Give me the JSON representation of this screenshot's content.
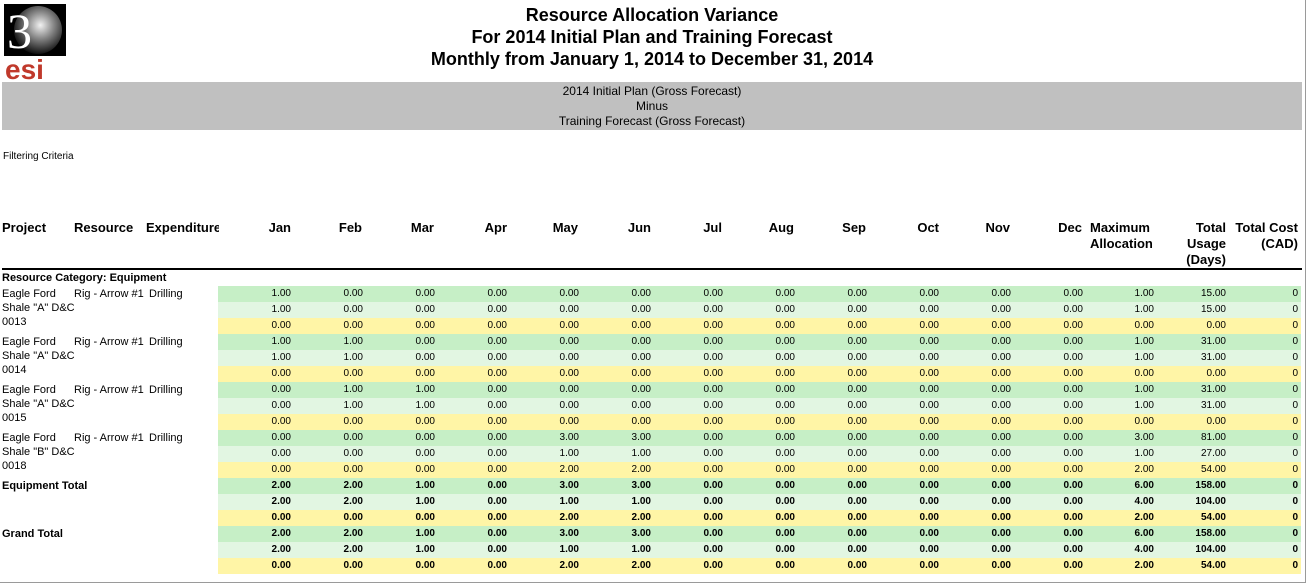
{
  "logo": {
    "digit": "3",
    "text": "esi",
    "accent_color": "#c0392b"
  },
  "header": {
    "title_lines": [
      "Resource Allocation Variance",
      "For 2014 Initial Plan and Training Forecast",
      "Monthly from January 1, 2014 to December 31, 2014"
    ],
    "band_lines": [
      "2014 Initial Plan (Gross Forecast)",
      "Minus",
      "Training Forecast (Gross Forecast)"
    ]
  },
  "filter_label": "Filtering Criteria",
  "columns": {
    "project": "Project",
    "resource": "Resource",
    "expenditure": "Expenditure",
    "months": [
      "Jan",
      "Feb",
      "Mar",
      "Apr",
      "May",
      "Jun",
      "Jul",
      "Aug",
      "Sep",
      "Oct",
      "Nov",
      "Dec"
    ],
    "max_alloc": [
      "Maximum",
      "Allocation"
    ],
    "total_usage": [
      "Total",
      "Usage",
      "(Days)"
    ],
    "total_cost": [
      "Total Cost",
      "(CAD)"
    ]
  },
  "category_label": "Resource Category: Equipment",
  "groups": [
    {
      "project": [
        "Eagle Ford",
        "Shale \"A\" D&C",
        "0013"
      ],
      "resource": "Rig - Arrow #1",
      "expenditure": "Drilling",
      "bold": false,
      "rows": [
        [
          "1.00",
          "0.00",
          "0.00",
          "0.00",
          "0.00",
          "0.00",
          "0.00",
          "0.00",
          "0.00",
          "0.00",
          "0.00",
          "0.00",
          "1.00",
          "15.00",
          "0"
        ],
        [
          "1.00",
          "0.00",
          "0.00",
          "0.00",
          "0.00",
          "0.00",
          "0.00",
          "0.00",
          "0.00",
          "0.00",
          "0.00",
          "0.00",
          "1.00",
          "15.00",
          "0"
        ],
        [
          "0.00",
          "0.00",
          "0.00",
          "0.00",
          "0.00",
          "0.00",
          "0.00",
          "0.00",
          "0.00",
          "0.00",
          "0.00",
          "0.00",
          "0.00",
          "0.00",
          "0"
        ]
      ]
    },
    {
      "project": [
        "Eagle Ford",
        "Shale \"A\" D&C",
        "0014"
      ],
      "resource": "Rig - Arrow #1",
      "expenditure": "Drilling",
      "bold": false,
      "rows": [
        [
          "1.00",
          "1.00",
          "0.00",
          "0.00",
          "0.00",
          "0.00",
          "0.00",
          "0.00",
          "0.00",
          "0.00",
          "0.00",
          "0.00",
          "1.00",
          "31.00",
          "0"
        ],
        [
          "1.00",
          "1.00",
          "0.00",
          "0.00",
          "0.00",
          "0.00",
          "0.00",
          "0.00",
          "0.00",
          "0.00",
          "0.00",
          "0.00",
          "1.00",
          "31.00",
          "0"
        ],
        [
          "0.00",
          "0.00",
          "0.00",
          "0.00",
          "0.00",
          "0.00",
          "0.00",
          "0.00",
          "0.00",
          "0.00",
          "0.00",
          "0.00",
          "0.00",
          "0.00",
          "0"
        ]
      ]
    },
    {
      "project": [
        "Eagle Ford",
        "Shale \"A\" D&C",
        "0015"
      ],
      "resource": "Rig - Arrow #1",
      "expenditure": "Drilling",
      "bold": false,
      "rows": [
        [
          "0.00",
          "1.00",
          "1.00",
          "0.00",
          "0.00",
          "0.00",
          "0.00",
          "0.00",
          "0.00",
          "0.00",
          "0.00",
          "0.00",
          "1.00",
          "31.00",
          "0"
        ],
        [
          "0.00",
          "1.00",
          "1.00",
          "0.00",
          "0.00",
          "0.00",
          "0.00",
          "0.00",
          "0.00",
          "0.00",
          "0.00",
          "0.00",
          "1.00",
          "31.00",
          "0"
        ],
        [
          "0.00",
          "0.00",
          "0.00",
          "0.00",
          "0.00",
          "0.00",
          "0.00",
          "0.00",
          "0.00",
          "0.00",
          "0.00",
          "0.00",
          "0.00",
          "0.00",
          "0"
        ]
      ]
    },
    {
      "project": [
        "Eagle Ford",
        "Shale \"B\" D&C",
        "0018"
      ],
      "resource": "Rig - Arrow #1",
      "expenditure": "Drilling",
      "bold": false,
      "rows": [
        [
          "0.00",
          "0.00",
          "0.00",
          "0.00",
          "3.00",
          "3.00",
          "0.00",
          "0.00",
          "0.00",
          "0.00",
          "0.00",
          "0.00",
          "3.00",
          "81.00",
          "0"
        ],
        [
          "0.00",
          "0.00",
          "0.00",
          "0.00",
          "1.00",
          "1.00",
          "0.00",
          "0.00",
          "0.00",
          "0.00",
          "0.00",
          "0.00",
          "1.00",
          "27.00",
          "0"
        ],
        [
          "0.00",
          "0.00",
          "0.00",
          "0.00",
          "2.00",
          "2.00",
          "0.00",
          "0.00",
          "0.00",
          "0.00",
          "0.00",
          "0.00",
          "2.00",
          "54.00",
          "0"
        ]
      ]
    },
    {
      "project": [
        "Equipment Total"
      ],
      "resource": "",
      "expenditure": "",
      "bold": true,
      "rows": [
        [
          "2.00",
          "2.00",
          "1.00",
          "0.00",
          "3.00",
          "3.00",
          "0.00",
          "0.00",
          "0.00",
          "0.00",
          "0.00",
          "0.00",
          "6.00",
          "158.00",
          "0"
        ],
        [
          "2.00",
          "2.00",
          "1.00",
          "0.00",
          "1.00",
          "1.00",
          "0.00",
          "0.00",
          "0.00",
          "0.00",
          "0.00",
          "0.00",
          "4.00",
          "104.00",
          "0"
        ],
        [
          "0.00",
          "0.00",
          "0.00",
          "0.00",
          "2.00",
          "2.00",
          "0.00",
          "0.00",
          "0.00",
          "0.00",
          "0.00",
          "0.00",
          "2.00",
          "54.00",
          "0"
        ]
      ]
    },
    {
      "project": [
        "Grand Total"
      ],
      "resource": "",
      "expenditure": "",
      "bold": true,
      "rows": [
        [
          "2.00",
          "2.00",
          "1.00",
          "0.00",
          "3.00",
          "3.00",
          "0.00",
          "0.00",
          "0.00",
          "0.00",
          "0.00",
          "0.00",
          "6.00",
          "158.00",
          "0"
        ],
        [
          "2.00",
          "2.00",
          "1.00",
          "0.00",
          "1.00",
          "1.00",
          "0.00",
          "0.00",
          "0.00",
          "0.00",
          "0.00",
          "0.00",
          "4.00",
          "104.00",
          "0"
        ],
        [
          "0.00",
          "0.00",
          "0.00",
          "0.00",
          "2.00",
          "2.00",
          "0.00",
          "0.00",
          "0.00",
          "0.00",
          "0.00",
          "0.00",
          "2.00",
          "54.00",
          "0"
        ]
      ]
    }
  ]
}
